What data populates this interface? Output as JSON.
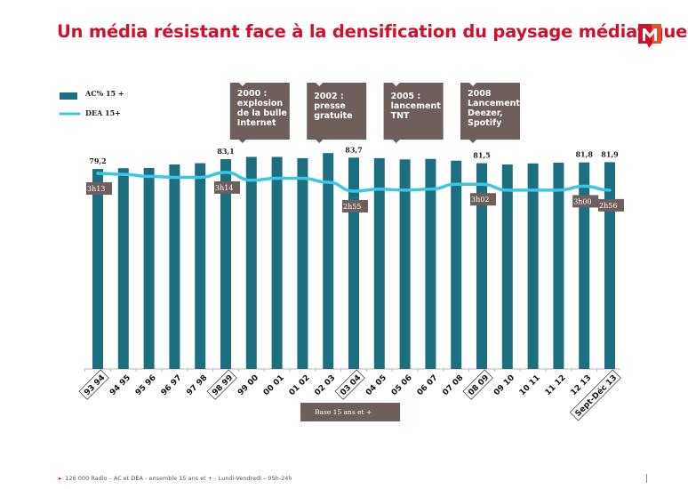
{
  "title": "Un média résistant face à la densification du paysage médiatique",
  "logo": {
    "letter": "M",
    "colors": [
      "#d0112b",
      "#e8502a"
    ]
  },
  "colors": {
    "bars": "#1b6f80",
    "line": "#3cc6e6",
    "callout": "#6e5f5c",
    "title": "#d0112b"
  },
  "callouts": [
    {
      "label": "2000 :\nexplosion\nde la bulle\nInternet",
      "category": "99 00"
    },
    {
      "label": "2002 :\npresse\ngratuite",
      "category": "02 03"
    },
    {
      "label": "2005 :\nlancement\nTNT",
      "category": "05 06"
    },
    {
      "label": "2008\nLancement\nDeezer,\nSpotify",
      "category": "08 09"
    }
  ],
  "base_note": "Base 15 ans et +",
  "footer": "126 000 Radio – AC et DEA - ensemble 15 ans et + - Lundi-Vendredi – 05h-24h",
  "chart_data": {
    "type": "bar+line",
    "categories": [
      "93 94",
      "94 95",
      "95 96",
      "96 97",
      "97 98",
      "98 99",
      "99 00",
      "00 01",
      "01 02",
      "02 03",
      "03 04",
      "04 05",
      "05 06",
      "06 07",
      "07 08",
      "08 09",
      "09 10",
      "10 11",
      "11 12",
      "12 13",
      "Sept-Déc 13"
    ],
    "highlighted_categories": [
      "93 94",
      "98 99",
      "03 04",
      "08 09",
      "Sept-Déc 13"
    ],
    "series": [
      {
        "name": "AC% 15 +",
        "type": "bar",
        "values": [
          79.2,
          79.5,
          79.6,
          81.0,
          81.5,
          83.1,
          84.0,
          84.0,
          83.5,
          85.5,
          83.7,
          83.5,
          83.0,
          83.2,
          82.5,
          81.5,
          81.0,
          81.4,
          81.7,
          81.8,
          81.9
        ],
        "data_labels": {
          "0": "79,2",
          "5": "83,1",
          "10": "83,7",
          "15": "81,5",
          "19": "81,8",
          "20": "81,9"
        }
      },
      {
        "name": "DEA 15+",
        "type": "line",
        "unit": "minutes",
        "values": [
          193,
          192,
          190,
          189,
          189,
          194,
          186,
          188,
          188,
          184,
          175,
          177,
          176,
          177,
          182,
          182,
          176,
          176,
          176,
          180,
          176
        ],
        "data_labels": {
          "0": "3h13",
          "5": "3h14",
          "10": "2h55",
          "15": "3h02",
          "19": "3h00",
          "20": "2h56"
        }
      }
    ],
    "legend": "top-left",
    "grid": false,
    "y_axis_visible": false
  }
}
